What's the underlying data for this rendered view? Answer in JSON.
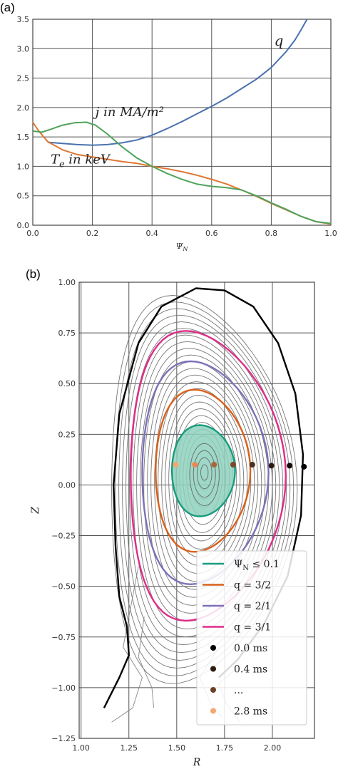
{
  "chart_data": [
    {
      "panel_label": "(a)",
      "type": "line",
      "xlabel": "ΨN",
      "xlim": [
        0.0,
        1.0
      ],
      "ylim": [
        0.0,
        3.5
      ],
      "x_ticks": [
        "0.0",
        "0.2",
        "0.4",
        "0.6",
        "0.8",
        "1.0"
      ],
      "y_ticks": [
        "0.0",
        "0.5",
        "1.0",
        "1.5",
        "2.0",
        "2.5",
        "3.0",
        "3.5"
      ],
      "grid": true,
      "series": [
        {
          "name": "q",
          "color": "#4a72b0",
          "x": [
            0.05,
            0.1,
            0.15,
            0.2,
            0.25,
            0.3,
            0.35,
            0.4,
            0.45,
            0.5,
            0.55,
            0.6,
            0.65,
            0.7,
            0.75,
            0.8,
            0.85,
            0.88,
            0.9,
            0.92
          ],
          "y": [
            1.41,
            1.39,
            1.37,
            1.36,
            1.37,
            1.4,
            1.45,
            1.53,
            1.64,
            1.76,
            1.89,
            2.02,
            2.16,
            2.32,
            2.48,
            2.68,
            2.95,
            3.15,
            3.32,
            3.5
          ]
        },
        {
          "name": "T_e in keV",
          "color": "#dd7733",
          "x": [
            0.0,
            0.02,
            0.05,
            0.1,
            0.15,
            0.2,
            0.25,
            0.3,
            0.35,
            0.4,
            0.45,
            0.5,
            0.55,
            0.6,
            0.65,
            0.7,
            0.75,
            0.8,
            0.85,
            0.9,
            0.95,
            1.0
          ],
          "y": [
            1.75,
            1.6,
            1.42,
            1.28,
            1.2,
            1.16,
            1.12,
            1.08,
            1.05,
            1.0,
            0.96,
            0.91,
            0.85,
            0.78,
            0.7,
            0.6,
            0.49,
            0.37,
            0.26,
            0.15,
            0.06,
            0.02
          ]
        },
        {
          "name": "j in MA/m²",
          "color": "#4ea35a",
          "x": [
            0.0,
            0.03,
            0.06,
            0.1,
            0.14,
            0.18,
            0.21,
            0.25,
            0.3,
            0.35,
            0.4,
            0.45,
            0.5,
            0.55,
            0.6,
            0.65,
            0.7,
            0.75,
            0.8,
            0.85,
            0.9,
            0.95,
            1.0
          ],
          "y": [
            1.6,
            1.58,
            1.63,
            1.7,
            1.74,
            1.75,
            1.7,
            1.55,
            1.33,
            1.14,
            1.0,
            0.88,
            0.78,
            0.7,
            0.66,
            0.64,
            0.6,
            0.5,
            0.38,
            0.27,
            0.15,
            0.06,
            0.03
          ]
        }
      ],
      "annotations": [
        {
          "text": "q",
          "x": 0.81,
          "y": 3.05,
          "color": "#222222"
        },
        {
          "text": "j in MA/m²",
          "x": 0.21,
          "y": 1.85,
          "color": "#222222"
        },
        {
          "text": "T_e in keV",
          "x": 0.06,
          "y": 1.05,
          "color": "#222222"
        }
      ]
    },
    {
      "panel_label": "(b)",
      "type": "scatter",
      "xlabel": "R",
      "ylabel": "Z",
      "xlim": [
        0.99,
        2.22
      ],
      "ylim": [
        -1.25,
        1.0
      ],
      "x_ticks": [
        "1.00",
        "1.25",
        "1.50",
        "1.75",
        "2.00"
      ],
      "y_ticks": [
        "1.00",
        "0.75",
        "0.50",
        "0.25",
        "0.00",
        "−0.25",
        "−0.50",
        "−0.75",
        "−1.00",
        "−1.25"
      ],
      "grid": true,
      "legend_position": "lower-right",
      "magnetic_axis": [
        1.645,
        0.065
      ],
      "highlighted_surfaces": [
        {
          "name": "ΨN ≤ 0.1",
          "color": "#179c7d",
          "fill": "#8fd1be",
          "r_min": 1.475,
          "r_max": 1.805,
          "z_min": -0.155,
          "z_max": 0.295
        },
        {
          "name": "q = 3/2",
          "color": "#d9611a",
          "r_min": 1.39,
          "r_max": 1.885,
          "z_min": -0.33,
          "z_max": 0.47
        },
        {
          "name": "q = 2/1",
          "color": "#7c71b8",
          "r_min": 1.32,
          "r_max": 1.98,
          "z_min": -0.49,
          "z_max": 0.61
        },
        {
          "name": "q = 3/1",
          "color": "#de2d8a",
          "r_min": 1.26,
          "r_max": 2.07,
          "z_min": -0.67,
          "z_max": 0.76
        }
      ],
      "time_points": [
        {
          "label": "0.0 ms",
          "r": 2.165,
          "z": 0.09,
          "color": "#000000"
        },
        {
          "label": "",
          "r": 2.09,
          "z": 0.095,
          "color": "#140c08"
        },
        {
          "label": "0.4 ms",
          "r": 1.995,
          "z": 0.095,
          "color": "#2c1a10"
        },
        {
          "label": "",
          "r": 1.895,
          "z": 0.1,
          "color": "#4a3020"
        },
        {
          "label": "...",
          "r": 1.795,
          "z": 0.1,
          "color": "#7a4a2a"
        },
        {
          "label": "",
          "r": 1.695,
          "z": 0.1,
          "color": "#a8663a"
        },
        {
          "label": "",
          "r": 1.595,
          "z": 0.1,
          "color": "#e88a52"
        },
        {
          "label": "2.8 ms",
          "r": 1.495,
          "z": 0.1,
          "color": "#f4a870"
        }
      ],
      "legend_entries": [
        {
          "label": "ΨN ≤ 0.1",
          "color": "#179c7d",
          "kind": "line"
        },
        {
          "label": "q = 3/2",
          "color": "#d9611a",
          "kind": "line"
        },
        {
          "label": "q = 2/1",
          "color": "#7c71b8",
          "kind": "line"
        },
        {
          "label": "q = 3/1",
          "color": "#de2d8a",
          "kind": "line"
        },
        {
          "label": "0.0 ms",
          "color": "#000000",
          "kind": "dot"
        },
        {
          "label": "0.4 ms",
          "color": "#2c1a10",
          "kind": "dot"
        },
        {
          "label": "...",
          "color": "#6b4226",
          "kind": "dot"
        },
        {
          "label": "2.8 ms",
          "color": "#f4a870",
          "kind": "dot"
        }
      ]
    }
  ]
}
